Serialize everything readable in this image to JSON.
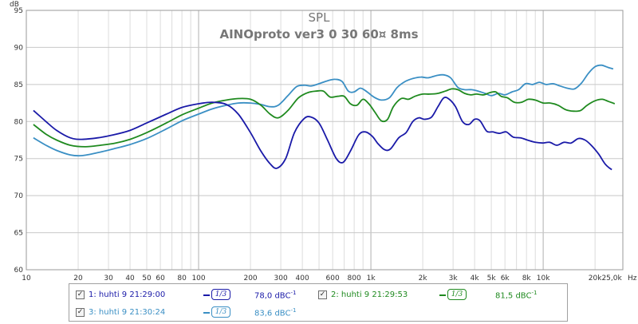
{
  "chart_data": {
    "type": "line",
    "title": "SPL",
    "subtitle": "AINOproto ver3 0 30 60¤ 8ms",
    "ylabel": "dB",
    "xlabel": "",
    "x_unit_label": "Hz",
    "x_scale": "log",
    "xlim": [
      10,
      29000
    ],
    "ylim": [
      60,
      95
    ],
    "grid": true,
    "x_ticks": [
      {
        "v": 10,
        "label": "10"
      },
      {
        "v": 20,
        "label": "20"
      },
      {
        "v": 30,
        "label": "30"
      },
      {
        "v": 40,
        "label": "40"
      },
      {
        "v": 50,
        "label": "50"
      },
      {
        "v": 60,
        "label": "60"
      },
      {
        "v": 80,
        "label": "80"
      },
      {
        "v": 100,
        "label": "100"
      },
      {
        "v": 200,
        "label": "200"
      },
      {
        "v": 300,
        "label": "300"
      },
      {
        "v": 400,
        "label": "400"
      },
      {
        "v": 600,
        "label": "600"
      },
      {
        "v": 800,
        "label": "800"
      },
      {
        "v": 1000,
        "label": "1k"
      },
      {
        "v": 2000,
        "label": "2k"
      },
      {
        "v": 3000,
        "label": "3k"
      },
      {
        "v": 4000,
        "label": "4k"
      },
      {
        "v": 5000,
        "label": "5k"
      },
      {
        "v": 6000,
        "label": "6k"
      },
      {
        "v": 8000,
        "label": "8k"
      },
      {
        "v": 10000,
        "label": "10k"
      },
      {
        "v": 20000,
        "label": "20k"
      },
      {
        "v": 25000,
        "label": "25,0k"
      }
    ],
    "y_ticks": [
      60,
      65,
      70,
      75,
      80,
      85,
      90,
      95
    ],
    "legend_position": "bottom",
    "series": [
      {
        "id": "s1",
        "name": "1: huhti 9 21:29:00",
        "color": "#1a1aa8",
        "smoothing": "1/3",
        "value_text": "78,0 dBC",
        "value_sup": "-1",
        "points": [
          [
            11,
            81.5
          ],
          [
            13,
            80
          ],
          [
            15,
            78.8
          ],
          [
            18,
            77.8
          ],
          [
            21,
            77.6
          ],
          [
            26,
            77.8
          ],
          [
            32,
            78.2
          ],
          [
            40,
            78.8
          ],
          [
            50,
            79.8
          ],
          [
            65,
            81
          ],
          [
            80,
            81.9
          ],
          [
            100,
            82.4
          ],
          [
            120,
            82.6
          ],
          [
            145,
            82.3
          ],
          [
            170,
            81
          ],
          [
            200,
            78.5
          ],
          [
            230,
            76
          ],
          [
            260,
            74.3
          ],
          [
            285,
            73.7
          ],
          [
            320,
            75
          ],
          [
            360,
            78.5
          ],
          [
            410,
            80.4
          ],
          [
            450,
            80.6
          ],
          [
            500,
            79.8
          ],
          [
            560,
            77.5
          ],
          [
            630,
            75
          ],
          [
            690,
            74.5
          ],
          [
            760,
            76
          ],
          [
            850,
            78.2
          ],
          [
            930,
            78.6
          ],
          [
            1020,
            78
          ],
          [
            1100,
            77
          ],
          [
            1200,
            76.2
          ],
          [
            1300,
            76.3
          ],
          [
            1450,
            77.8
          ],
          [
            1600,
            78.5
          ],
          [
            1750,
            80
          ],
          [
            1900,
            80.5
          ],
          [
            2050,
            80.3
          ],
          [
            2250,
            80.6
          ],
          [
            2450,
            82
          ],
          [
            2650,
            83.2
          ],
          [
            2850,
            83
          ],
          [
            3100,
            82
          ],
          [
            3400,
            80
          ],
          [
            3700,
            79.6
          ],
          [
            4000,
            80.3
          ],
          [
            4300,
            80.1
          ],
          [
            4700,
            78.7
          ],
          [
            5100,
            78.6
          ],
          [
            5600,
            78.4
          ],
          [
            6100,
            78.6
          ],
          [
            6700,
            77.9
          ],
          [
            7400,
            77.8
          ],
          [
            8100,
            77.5
          ],
          [
            9000,
            77.2
          ],
          [
            9900,
            77.1
          ],
          [
            10900,
            77.2
          ],
          [
            12000,
            76.8
          ],
          [
            13200,
            77.2
          ],
          [
            14500,
            77.1
          ],
          [
            16000,
            77.7
          ],
          [
            17500,
            77.5
          ],
          [
            19000,
            76.8
          ],
          [
            21000,
            75.6
          ],
          [
            23000,
            74.2
          ],
          [
            25000,
            73.5
          ]
        ]
      },
      {
        "id": "s2",
        "name": "2: huhti 9 21:29:53",
        "color": "#1f8a1f",
        "smoothing": "1/3",
        "value_text": "81,5 dBC",
        "value_sup": "-1",
        "points": [
          [
            11,
            79.6
          ],
          [
            13,
            78.3
          ],
          [
            15,
            77.5
          ],
          [
            18,
            76.8
          ],
          [
            22,
            76.6
          ],
          [
            27,
            76.8
          ],
          [
            33,
            77.1
          ],
          [
            40,
            77.6
          ],
          [
            50,
            78.5
          ],
          [
            65,
            79.8
          ],
          [
            80,
            80.9
          ],
          [
            100,
            81.8
          ],
          [
            120,
            82.5
          ],
          [
            145,
            82.9
          ],
          [
            170,
            83.1
          ],
          [
            200,
            83
          ],
          [
            230,
            82.2
          ],
          [
            260,
            81
          ],
          [
            290,
            80.5
          ],
          [
            330,
            81.5
          ],
          [
            380,
            83.2
          ],
          [
            430,
            83.9
          ],
          [
            480,
            84.1
          ],
          [
            530,
            84.1
          ],
          [
            580,
            83.3
          ],
          [
            640,
            83.4
          ],
          [
            700,
            83.4
          ],
          [
            760,
            82.4
          ],
          [
            830,
            82.2
          ],
          [
            900,
            83
          ],
          [
            980,
            82.3
          ],
          [
            1060,
            81.2
          ],
          [
            1150,
            80.1
          ],
          [
            1250,
            80.3
          ],
          [
            1350,
            82
          ],
          [
            1500,
            83.1
          ],
          [
            1650,
            83
          ],
          [
            1800,
            83.4
          ],
          [
            2000,
            83.7
          ],
          [
            2200,
            83.7
          ],
          [
            2450,
            83.8
          ],
          [
            2700,
            84.1
          ],
          [
            2950,
            84.4
          ],
          [
            3200,
            84.3
          ],
          [
            3500,
            83.8
          ],
          [
            3800,
            83.6
          ],
          [
            4100,
            83.7
          ],
          [
            4500,
            83.6
          ],
          [
            4900,
            83.9
          ],
          [
            5300,
            84
          ],
          [
            5700,
            83.4
          ],
          [
            6200,
            83.2
          ],
          [
            6800,
            82.6
          ],
          [
            7500,
            82.6
          ],
          [
            8200,
            83
          ],
          [
            9000,
            82.9
          ],
          [
            10000,
            82.5
          ],
          [
            11000,
            82.5
          ],
          [
            12200,
            82.2
          ],
          [
            13500,
            81.6
          ],
          [
            15000,
            81.4
          ],
          [
            16500,
            81.5
          ],
          [
            18000,
            82.2
          ],
          [
            20000,
            82.8
          ],
          [
            22000,
            83
          ],
          [
            24000,
            82.7
          ],
          [
            26000,
            82.4
          ]
        ]
      },
      {
        "id": "s3",
        "name": "3: huhti 9 21:30:24",
        "color": "#3a8fc4",
        "smoothing": "1/3",
        "value_text": "83,6 dBC",
        "value_sup": "-1",
        "points": [
          [
            11,
            77.8
          ],
          [
            13,
            76.8
          ],
          [
            15,
            76.1
          ],
          [
            18,
            75.5
          ],
          [
            21,
            75.4
          ],
          [
            26,
            75.8
          ],
          [
            32,
            76.3
          ],
          [
            40,
            76.9
          ],
          [
            50,
            77.7
          ],
          [
            65,
            79
          ],
          [
            80,
            80.1
          ],
          [
            100,
            81
          ],
          [
            120,
            81.7
          ],
          [
            145,
            82.2
          ],
          [
            170,
            82.5
          ],
          [
            200,
            82.5
          ],
          [
            230,
            82.3
          ],
          [
            260,
            82
          ],
          [
            290,
            82.2
          ],
          [
            330,
            83.5
          ],
          [
            370,
            84.7
          ],
          [
            410,
            84.9
          ],
          [
            450,
            84.8
          ],
          [
            500,
            85.1
          ],
          [
            560,
            85.5
          ],
          [
            620,
            85.7
          ],
          [
            680,
            85.4
          ],
          [
            740,
            84.1
          ],
          [
            800,
            84
          ],
          [
            870,
            84.5
          ],
          [
            950,
            84
          ],
          [
            1040,
            83.3
          ],
          [
            1150,
            82.9
          ],
          [
            1280,
            83.2
          ],
          [
            1420,
            84.6
          ],
          [
            1580,
            85.4
          ],
          [
            1750,
            85.8
          ],
          [
            1950,
            86
          ],
          [
            2150,
            85.9
          ],
          [
            2400,
            86.2
          ],
          [
            2650,
            86.3
          ],
          [
            2900,
            85.9
          ],
          [
            3200,
            84.6
          ],
          [
            3500,
            84.3
          ],
          [
            3850,
            84.3
          ],
          [
            4200,
            84.1
          ],
          [
            4600,
            83.8
          ],
          [
            5000,
            83.5
          ],
          [
            5500,
            83.8
          ],
          [
            6000,
            83.6
          ],
          [
            6600,
            84
          ],
          [
            7200,
            84.3
          ],
          [
            7900,
            85.1
          ],
          [
            8700,
            85
          ],
          [
            9500,
            85.3
          ],
          [
            10400,
            85
          ],
          [
            11400,
            85.1
          ],
          [
            12500,
            84.8
          ],
          [
            13800,
            84.5
          ],
          [
            15200,
            84.4
          ],
          [
            16700,
            85.2
          ],
          [
            18300,
            86.5
          ],
          [
            20000,
            87.4
          ],
          [
            21800,
            87.6
          ],
          [
            23800,
            87.3
          ],
          [
            25500,
            87.1
          ]
        ]
      }
    ]
  }
}
